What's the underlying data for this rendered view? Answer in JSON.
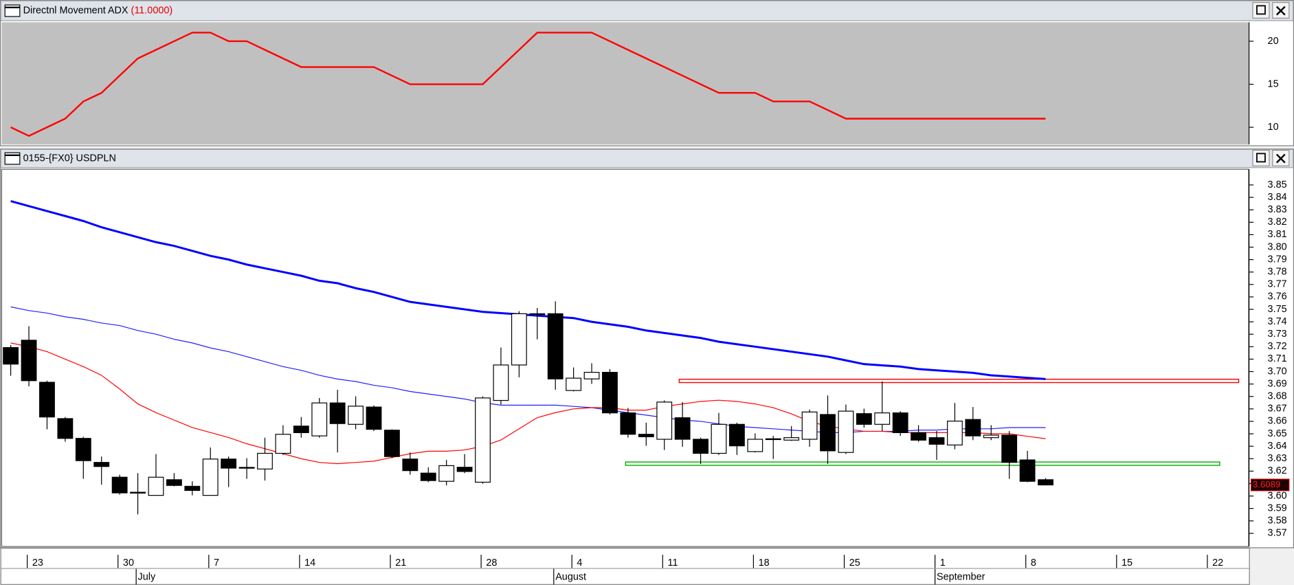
{
  "chart_data": [
    {
      "type": "line",
      "title": "Directnl Movement ADX",
      "current_value_label": "(11.0000)",
      "color": "#ff0000",
      "values": [
        10,
        9,
        10,
        11,
        13,
        14,
        16,
        18,
        19,
        20,
        21,
        21,
        20,
        20,
        19,
        18,
        17,
        17,
        17,
        17,
        17,
        16,
        15,
        15,
        15,
        15,
        15,
        17,
        19,
        21,
        21,
        21,
        21,
        20,
        19,
        18,
        17,
        16,
        15,
        14,
        14,
        14,
        13,
        13,
        13,
        12,
        11,
        11,
        11,
        11,
        11,
        11,
        11,
        11,
        11,
        11,
        11,
        11
      ],
      "ylim": [
        8,
        22.2
      ],
      "yticks": [
        10,
        15,
        20
      ],
      "grid": false
    },
    {
      "type": "candlestick",
      "title": "0155-{FX0} USDPLN",
      "categories": [
        null,
        "23",
        null,
        null,
        null,
        null,
        "30",
        null,
        null,
        null,
        null,
        "7",
        null,
        null,
        null,
        null,
        "14",
        null,
        null,
        null,
        null,
        "21",
        null,
        null,
        null,
        null,
        "28",
        null,
        null,
        null,
        null,
        "4",
        null,
        null,
        null,
        null,
        "11",
        null,
        null,
        null,
        null,
        "18",
        null,
        null,
        null,
        null,
        "25",
        null,
        null,
        null,
        null,
        "1",
        null,
        null,
        null,
        null,
        "8",
        null,
        null,
        null,
        null,
        "15",
        null,
        null,
        null,
        null,
        "22",
        null,
        null
      ],
      "month_labels": [
        null,
        null,
        null,
        null,
        null,
        null,
        null,
        "July",
        null,
        null,
        null,
        null,
        null,
        null,
        null,
        null,
        null,
        null,
        null,
        null,
        null,
        null,
        null,
        null,
        null,
        null,
        null,
        null,
        null,
        null,
        "August",
        null,
        null,
        null,
        null,
        null,
        null,
        null,
        null,
        null,
        null,
        null,
        null,
        null,
        null,
        null,
        null,
        null,
        null,
        null,
        null,
        "September",
        null,
        null,
        null,
        null,
        null,
        null,
        null,
        null,
        null,
        null,
        null,
        null,
        null,
        null,
        null,
        null,
        null
      ],
      "open": [
        3.7193,
        3.7252,
        3.6914,
        3.6622,
        3.6463,
        3.627,
        3.6151,
        3.6025,
        3.6005,
        3.6131,
        3.6078,
        3.6005,
        3.6297,
        3.6224,
        3.6217,
        3.6343,
        3.6562,
        3.6483,
        3.6748,
        3.6576,
        3.6715,
        3.6529,
        3.6297,
        3.6184,
        3.6118,
        3.6231,
        3.6111,
        3.6768,
        3.7053,
        3.7458,
        3.7465,
        3.6848,
        3.6941,
        3.6994,
        3.6668,
        3.6496,
        3.6456,
        3.6629,
        3.6456,
        3.6343,
        3.6576,
        3.6357,
        3.6456,
        3.6449,
        3.6456,
        3.6655,
        3.635,
        3.6662,
        3.6576,
        3.6668,
        3.6509,
        3.6469,
        3.641,
        3.6615,
        3.6469,
        3.6489,
        3.629,
        3.6131,
        null,
        null,
        null,
        null,
        null,
        null,
        null,
        null,
        null,
        null,
        null
      ],
      "high": [
        3.7213,
        3.7365,
        3.6927,
        3.6635,
        3.6476,
        3.6317,
        3.6171,
        3.6184,
        3.6337,
        3.6184,
        3.6118,
        3.639,
        3.6317,
        3.6304,
        3.6469,
        3.6569,
        3.6635,
        3.6788,
        3.6854,
        3.6801,
        3.6728,
        3.6536,
        3.635,
        3.6231,
        3.629,
        3.6337,
        3.6801,
        3.7193,
        3.7485,
        3.7511,
        3.7565,
        3.7033,
        3.7067,
        3.702,
        3.6708,
        3.6589,
        3.6768,
        3.6755,
        3.6469,
        3.6668,
        3.6589,
        3.6503,
        3.6483,
        3.6562,
        3.6695,
        3.6808,
        3.6735,
        3.6702,
        3.6921,
        3.6682,
        3.6569,
        3.6522,
        3.6748,
        3.6715,
        3.6569,
        3.6522,
        3.6363,
        3.6144,
        null,
        null,
        null,
        null,
        null,
        null,
        null,
        null,
        null,
        null,
        null
      ],
      "low": [
        3.6967,
        3.6881,
        3.6536,
        3.6436,
        3.6138,
        3.6091,
        3.6012,
        3.5852,
        3.6005,
        3.6078,
        3.6005,
        3.6005,
        3.6072,
        3.6138,
        3.6124,
        3.633,
        3.6469,
        3.6469,
        3.635,
        3.6536,
        3.6522,
        3.6304,
        3.6171,
        3.6111,
        3.6085,
        3.6184,
        3.6098,
        3.6735,
        3.6954,
        3.7259,
        3.6854,
        3.6841,
        3.6901,
        3.6655,
        3.6469,
        3.6403,
        3.637,
        3.6396,
        3.6257,
        3.633,
        3.633,
        3.635,
        3.6297,
        3.6443,
        3.6396,
        3.6257,
        3.6337,
        3.6549,
        3.6522,
        3.6483,
        3.6436,
        3.629,
        3.6376,
        3.6449,
        3.6449,
        3.6138,
        3.6111,
        3.6085,
        null,
        null,
        null,
        null,
        null,
        null,
        null,
        null,
        null,
        null,
        null
      ],
      "close": [
        3.706,
        3.6927,
        3.6635,
        3.6463,
        3.6284,
        3.6237,
        3.6025,
        3.603,
        3.6151,
        3.6085,
        3.6045,
        3.6297,
        3.6224,
        3.623,
        3.6343,
        3.6496,
        3.6509,
        3.6748,
        3.6582,
        3.6722,
        3.6536,
        3.6317,
        3.6204,
        3.6124,
        3.6244,
        3.6197,
        3.6788,
        3.7053,
        3.7465,
        3.7465,
        3.6941,
        3.6947,
        3.6994,
        3.6668,
        3.6496,
        3.6476,
        3.6755,
        3.6456,
        3.6343,
        3.6576,
        3.6403,
        3.6456,
        3.646,
        3.6469,
        3.6675,
        3.6363,
        3.6682,
        3.6576,
        3.6668,
        3.6509,
        3.6449,
        3.6416,
        3.6602,
        3.6483,
        3.6489,
        3.627,
        3.6118,
        3.6089,
        null,
        null,
        null,
        null,
        null,
        null,
        null,
        null,
        null,
        null,
        null
      ],
      "overlays": [
        {
          "color": "#0000ff",
          "values": [
            3.837,
            3.833,
            3.829,
            3.825,
            3.821,
            3.816,
            3.812,
            3.808,
            3.804,
            3.801,
            3.797,
            3.793,
            3.79,
            3.786,
            3.783,
            3.78,
            3.777,
            3.773,
            3.771,
            3.767,
            3.764,
            3.76,
            3.756,
            3.754,
            3.752,
            3.75,
            3.748,
            3.747,
            3.746,
            3.745,
            3.744,
            3.743,
            3.74,
            3.738,
            3.736,
            3.733,
            3.731,
            3.729,
            3.727,
            3.724,
            3.722,
            3.72,
            3.718,
            3.716,
            3.714,
            3.712,
            3.709,
            3.706,
            3.705,
            3.704,
            3.702,
            3.701,
            3.7,
            3.699,
            3.697,
            3.696,
            3.695,
            3.694,
            null,
            null,
            null,
            null,
            null,
            null,
            null,
            null,
            null,
            null,
            null
          ]
        },
        {
          "color": "#2020ff",
          "values": [
            3.752,
            3.749,
            3.747,
            3.744,
            3.742,
            3.739,
            3.737,
            3.733,
            3.73,
            3.726,
            3.723,
            3.719,
            3.716,
            3.712,
            3.708,
            3.704,
            3.701,
            3.697,
            3.694,
            3.692,
            3.689,
            3.687,
            3.684,
            3.682,
            3.68,
            3.678,
            3.675,
            3.673,
            3.673,
            3.673,
            3.673,
            3.672,
            3.671,
            3.669,
            3.667,
            3.665,
            3.663,
            3.661,
            3.66,
            3.658,
            3.656,
            3.655,
            3.654,
            3.653,
            3.652,
            3.651,
            3.651,
            3.652,
            3.652,
            3.652,
            3.653,
            3.653,
            3.654,
            3.654,
            3.654,
            3.655,
            3.655,
            3.655,
            null,
            null,
            null,
            null,
            null,
            null,
            null,
            null,
            null,
            null,
            null
          ]
        },
        {
          "color": "#ff0000",
          "values": [
            3.723,
            3.72,
            3.716,
            3.71,
            3.704,
            3.697,
            3.686,
            3.674,
            3.667,
            3.661,
            3.655,
            3.651,
            3.647,
            3.642,
            3.638,
            3.634,
            3.63,
            3.627,
            3.626,
            3.627,
            3.628,
            3.631,
            3.634,
            3.636,
            3.636,
            3.637,
            3.64,
            3.645,
            3.654,
            3.663,
            3.667,
            3.67,
            3.671,
            3.671,
            3.669,
            3.669,
            3.672,
            3.674,
            3.676,
            3.677,
            3.676,
            3.674,
            3.671,
            3.666,
            3.66,
            3.656,
            3.654,
            3.652,
            3.652,
            3.651,
            3.651,
            3.651,
            3.651,
            3.651,
            3.65,
            3.65,
            3.648,
            3.646,
            null,
            null,
            null,
            null,
            null,
            null,
            null,
            null,
            null,
            null,
            null
          ]
        }
      ],
      "horizontal_lines": [
        {
          "value": 3.6925,
          "color": "#ff0000"
        },
        {
          "value": 3.626,
          "color": "#00b000"
        }
      ],
      "last_price": 3.6089,
      "ylim": [
        3.5594,
        3.8626
      ],
      "yticks": [
        3.57,
        3.58,
        3.59,
        {
          "value": 3.6,
          "label": "3.60"
        },
        3.61,
        3.62,
        3.63,
        3.64,
        3.65,
        3.66,
        3.67,
        3.68,
        3.69,
        {
          "value": 3.7,
          "label": "3.70"
        },
        3.71,
        3.72,
        3.73,
        3.74,
        3.75,
        3.76,
        3.77,
        3.78,
        3.79,
        {
          "value": 3.8,
          "label": "3.80"
        },
        3.81,
        3.82,
        3.83,
        3.84,
        3.85
      ],
      "grid": false
    }
  ]
}
